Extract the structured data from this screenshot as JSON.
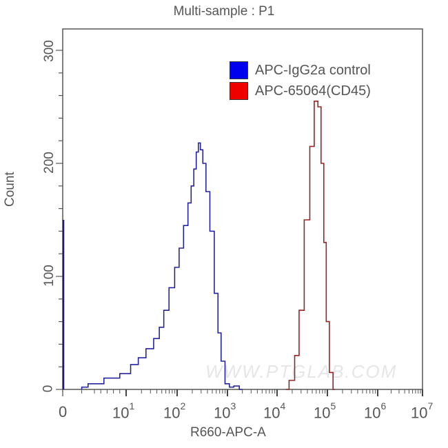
{
  "chart": {
    "title": "Multi-sample : P1",
    "xlabel": "R660-APC-A",
    "ylabel": "Count",
    "yticks": [
      "0",
      "100",
      "200",
      "300"
    ],
    "xticks": [
      {
        "base": "0",
        "exp": ""
      },
      {
        "base": "10",
        "exp": "1"
      },
      {
        "base": "10",
        "exp": "2"
      },
      {
        "base": "10",
        "exp": "3"
      },
      {
        "base": "10",
        "exp": "4"
      },
      {
        "base": "10",
        "exp": "5"
      },
      {
        "base": "10",
        "exp": "6"
      },
      {
        "base": "10",
        "exp": "7"
      }
    ],
    "legend": [
      {
        "label": "APC-IgG2a control",
        "color": "#0000ee"
      },
      {
        "label": "APC-65064(CD45)",
        "color": "#ee0000"
      }
    ],
    "watermark": "WWW.PTGLAB.COM"
  },
  "chart_data": {
    "type": "line",
    "title": "Multi-sample : P1",
    "xlabel": "R660-APC-A",
    "ylabel": "Count",
    "xscale": "biexponential (log with 0)",
    "xlim": [
      0,
      10000000
    ],
    "ylim": [
      0,
      320
    ],
    "x_tick_labels": [
      "0",
      "10^1",
      "10^2",
      "10^3",
      "10^4",
      "10^5",
      "10^6",
      "10^7"
    ],
    "y_tick_labels": [
      "0",
      "100",
      "200",
      "300"
    ],
    "legend_position": "upper right",
    "grid": false,
    "series": [
      {
        "name": "APC-IgG2a control",
        "color": "#0000ee",
        "x": [
          0,
          3,
          5,
          8,
          10,
          15,
          20,
          30,
          40,
          50,
          60,
          80,
          100,
          120,
          150,
          180,
          200,
          230,
          250,
          280,
          300,
          350,
          400,
          500,
          600,
          700,
          800,
          1000,
          1200,
          1500,
          2000
        ],
        "y": [
          150,
          2,
          5,
          10,
          14,
          22,
          28,
          36,
          45,
          55,
          70,
          90,
          108,
          125,
          145,
          165,
          180,
          195,
          210,
          218,
          212,
          200,
          175,
          140,
          85,
          50,
          25,
          5,
          2,
          3,
          0
        ]
      },
      {
        "name": "APC-65064(CD45)",
        "color": "#ee0000",
        "x": [
          15000,
          20000,
          25000,
          30000,
          40000,
          50000,
          60000,
          70000,
          80000,
          90000,
          100000,
          120000,
          140000
        ],
        "y": [
          0,
          8,
          30,
          70,
          150,
          215,
          255,
          250,
          200,
          130,
          60,
          15,
          0
        ]
      }
    ]
  }
}
